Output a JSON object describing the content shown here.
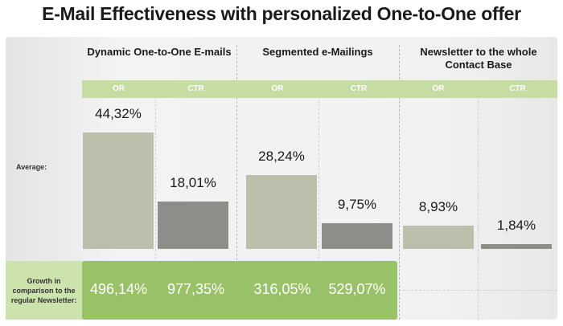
{
  "chart_data": {
    "type": "bar",
    "title": "E-Mail Effectiveness with personalized One-to-One offer",
    "row_labels": {
      "average": "Average:",
      "growth": "Growth in comparison to the regular Newsletter:"
    },
    "groups": [
      {
        "name": "Dynamic One-to-One E-mails",
        "metrics": [
          {
            "label": "OR",
            "value": 44.32,
            "text": "44,32%",
            "growth": "496,14%"
          },
          {
            "label": "CTR",
            "value": 18.01,
            "text": "18,01%",
            "growth": "977,35%"
          }
        ]
      },
      {
        "name": "Segmented e-Mailings",
        "metrics": [
          {
            "label": "OR",
            "value": 28.24,
            "text": "28,24%",
            "growth": "316,05%"
          },
          {
            "label": "CTR",
            "value": 9.75,
            "text": "9,75%",
            "growth": "529,07%"
          }
        ]
      },
      {
        "name": "Newsletter to the whole Contact Base",
        "metrics": [
          {
            "label": "OR",
            "value": 8.93,
            "text": "8,93%"
          },
          {
            "label": "CTR",
            "value": 1.84,
            "text": "1,84%"
          }
        ]
      }
    ],
    "colors": {
      "OR": "#bcbfab",
      "CTR": "#8d8d89",
      "header": "#c5dca3",
      "growth": "#98c168"
    }
  }
}
